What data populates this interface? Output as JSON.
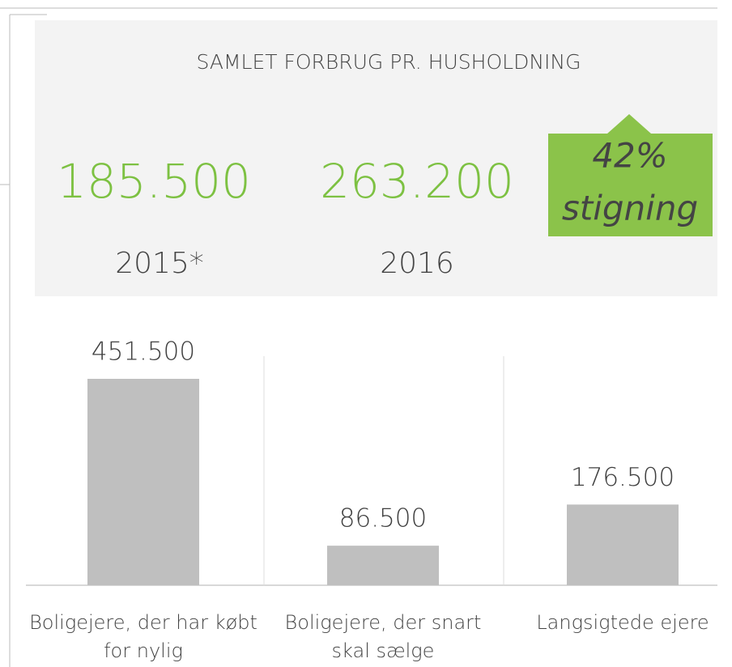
{
  "summary": {
    "title": "SAMLET FORBRUG PR. HUSHOLDNING",
    "stats": [
      {
        "value": "185.500",
        "year": "2015*"
      },
      {
        "value": "263.200",
        "year": "2016"
      }
    ],
    "badge": [
      "42%",
      "stigning"
    ]
  },
  "chart_data": {
    "type": "bar",
    "categories": [
      "Boligejere, der har købt for nylig",
      "Boligejere, der snart skal sælge",
      "Langsigtede ejere"
    ],
    "values": [
      451500,
      86500,
      176500
    ],
    "value_labels": [
      "451.500",
      "86.500",
      "176.500"
    ],
    "color": "#bfbfbf"
  }
}
